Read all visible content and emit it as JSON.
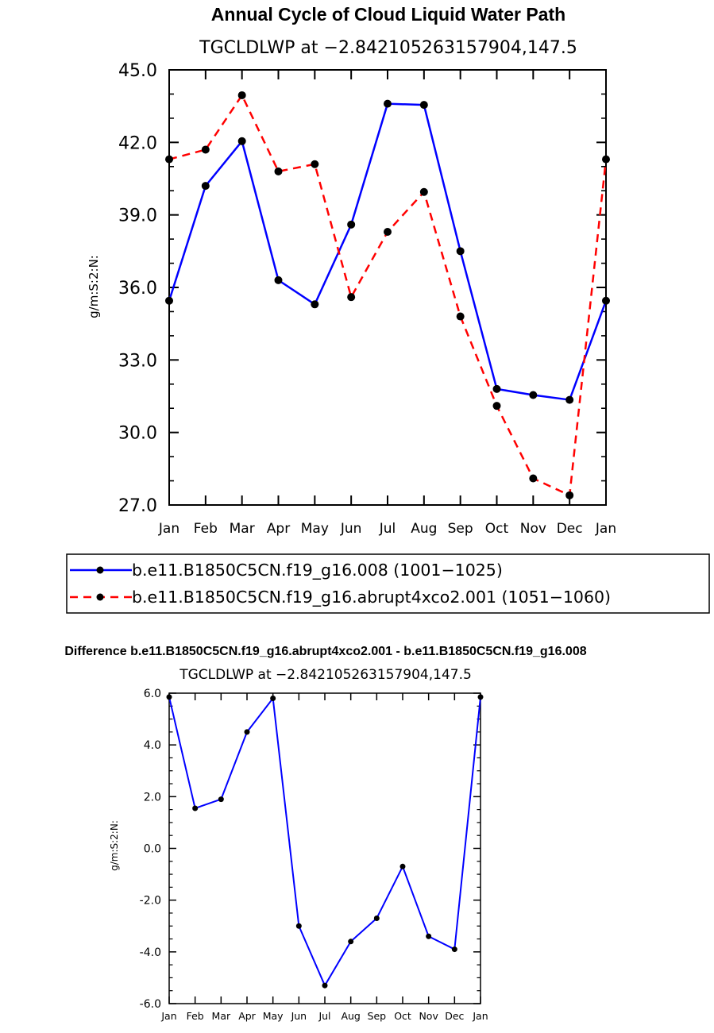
{
  "chart_data": [
    {
      "type": "line",
      "title": "Annual Cycle of Cloud Liquid Water Path",
      "subtitle": "TGCLDLWP at −2.842105263157904,147.5",
      "ylabel": "g/m:S:2:N:",
      "xlabel": "",
      "categories": [
        "Jan",
        "Feb",
        "Mar",
        "Apr",
        "May",
        "Jun",
        "Jul",
        "Aug",
        "Sep",
        "Oct",
        "Nov",
        "Dec",
        "Jan"
      ],
      "ylim": [
        27.0,
        45.0
      ],
      "yticks": [
        "27.0",
        "30.0",
        "33.0",
        "36.0",
        "39.0",
        "42.0",
        "45.0"
      ],
      "grid": false,
      "legend_position": "below",
      "series": [
        {
          "name": "b.e11.B1850C5CN.f19_g16.008 (1001−1025)",
          "color": "#0000ff",
          "dash": "solid",
          "values": [
            35.45,
            40.2,
            42.05,
            36.3,
            35.3,
            38.6,
            43.6,
            43.55,
            37.5,
            31.8,
            31.55,
            31.35,
            35.45
          ]
        },
        {
          "name": "b.e11.B1850C5CN.f19_g16.abrupt4xco2.001 (1051−1060)",
          "color": "#ff0000",
          "dash": "dashed",
          "values": [
            41.3,
            41.7,
            43.95,
            40.8,
            41.1,
            35.6,
            38.3,
            39.95,
            34.8,
            31.1,
            28.1,
            27.4,
            41.3
          ]
        }
      ]
    },
    {
      "type": "line",
      "title": "Difference b.e11.B1850C5CN.f19_g16.abrupt4xco2.001 - b.e11.B1850C5CN.f19_g16.008",
      "subtitle": "TGCLDLWP at −2.842105263157904,147.5",
      "ylabel": "g/m:S:2:N:",
      "xlabel": "",
      "categories": [
        "Jan",
        "Feb",
        "Mar",
        "Apr",
        "May",
        "Jun",
        "Jul",
        "Aug",
        "Sep",
        "Oct",
        "Nov",
        "Dec",
        "Jan"
      ],
      "ylim": [
        -6.0,
        6.0
      ],
      "yticks": [
        "-6.0",
        "-4.0",
        "-2.0",
        "0.0",
        "2.0",
        "4.0",
        "6.0"
      ],
      "grid": false,
      "series": [
        {
          "color": "#0000ff",
          "dash": "solid",
          "values": [
            5.85,
            1.55,
            1.9,
            4.5,
            5.8,
            -3.0,
            -5.3,
            -3.6,
            -2.7,
            -0.7,
            -3.4,
            -3.9,
            5.85
          ]
        }
      ]
    }
  ]
}
